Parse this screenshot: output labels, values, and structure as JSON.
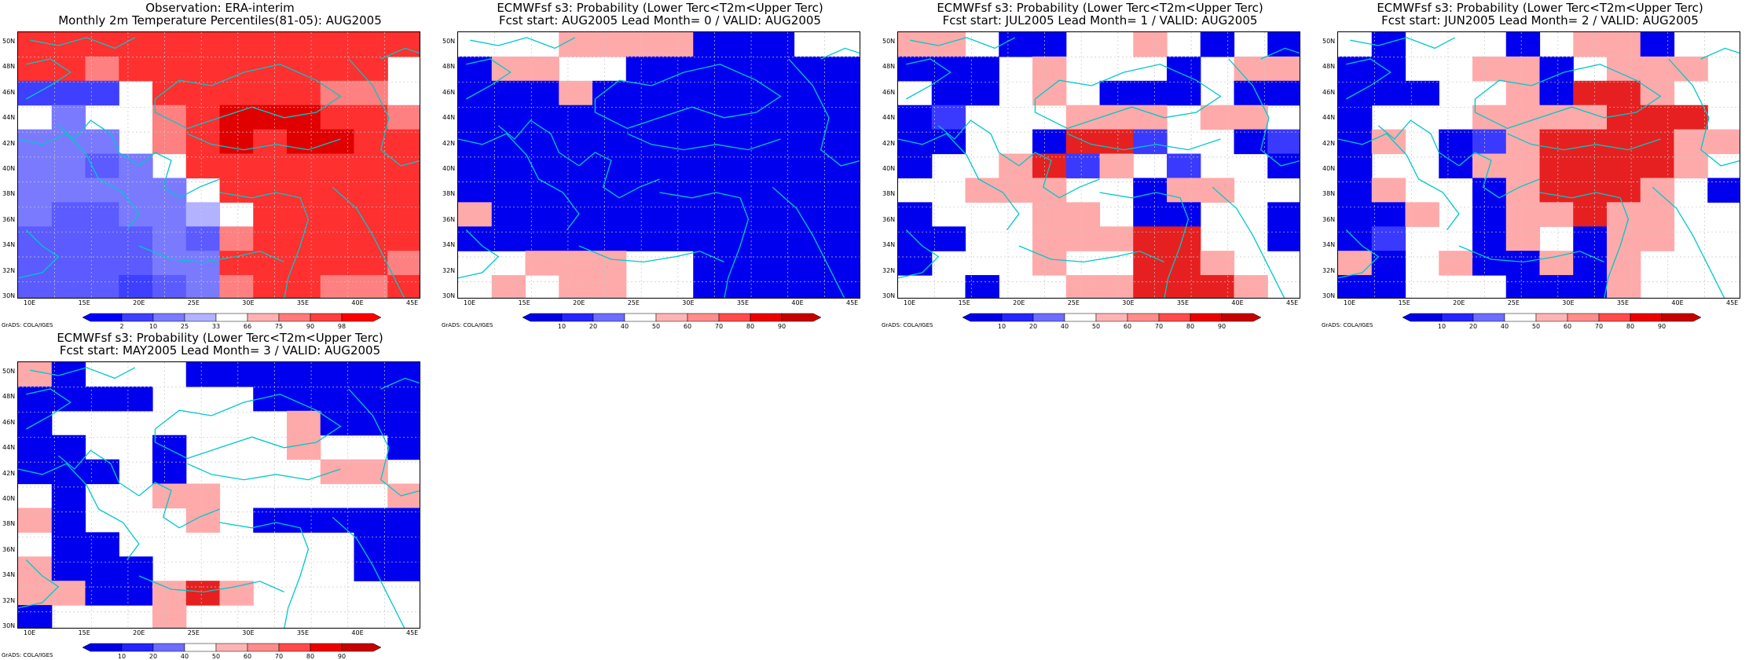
{
  "credit": "GrADS: COLA/IGES",
  "lat_labels": [
    "30N",
    "32N",
    "34N",
    "36N",
    "38N",
    "40N",
    "42N",
    "44N",
    "46N",
    "48N",
    "50N"
  ],
  "lon_labels": [
    "10E",
    "15E",
    "20E",
    "25E",
    "30E",
    "35E",
    "40E",
    "45E"
  ],
  "obs_colorbar": {
    "labels": [
      "2",
      "10",
      "25",
      "33",
      "66",
      "75",
      "90",
      "98"
    ],
    "colors": [
      "#0000ff",
      "#3f3fff",
      "#7a7aff",
      "#b2b2ff",
      "#ffffff",
      "#ffb2b2",
      "#ff7a7a",
      "#ff3f3f",
      "#ff0000"
    ]
  },
  "prob_colorbar": {
    "labels": [
      "10",
      "20",
      "40",
      "50",
      "60",
      "70",
      "80",
      "90"
    ],
    "colors": [
      "#0000e6",
      "#2525ff",
      "#6d6dff",
      "#ffffff",
      "#ffb4b4",
      "#ff8c8c",
      "#ff4b4b",
      "#ee0000",
      "#c80000"
    ]
  },
  "panels": [
    {
      "title1": "Observation: ERA-interim",
      "title2": "Monthly 2m Temperature Percentiles(81-05): AUG2005",
      "colorbar": "obs",
      "grid": [
        "RRRRRRRRRRRR",
        "RRrRRRRRRRR.",
        "LLL.RRRRRrr.",
        ".l..rRSSSRRr",
        "lll.rRSRSSRR",
        "llkl.RRRRRRR",
        "lllll.RRRRRR",
        "lkkllu.RRRRR",
        "kkkklkrRRRRR",
        "kkkkllRRRRRr",
        "kkkmklrRRrrR"
      ]
    },
    {
      "title1": "ECMWFsf s3: Probability (Lower Terc<T2m<Upper Terc)",
      "title2": "Fcst start: AUG2005  Lead Month= 0 / VALID: AUG2005",
      "colorbar": "prob",
      "grid": [
        "...rrrrBBB..",
        "Brr..BBBBBBB",
        "BBBrBBBBBBBB",
        "BBBBBBBBBBBB",
        "BBBBBBBBBBBB",
        "BBBBBBBBBBBB",
        "BBBBBBBBBBBB",
        "rBBBBBBBBBBB",
        "BBBBBBBBBBBB",
        "..rrr..BBBBB",
        ".r.rr..BBBBB"
      ]
    },
    {
      "title1": "ECMWFsf s3: Probability (Lower Terc<T2m<Upper Terc)",
      "title2": "Fcst start: JUL2005  Lead Month= 1 / VALID: AUG2005",
      "colorbar": "prob",
      "grid": [
        "rr.BB..r.B.B",
        "BBB.r...B.rr",
        ".BB.r.BBB.BB",
        "Bb...rrr.rr.",
        "BB..BRRb..Bb",
        "B..rRbr.b..B",
        "..rrr..Brr..",
        "B...rr.BB..B",
        "BB..rrrRR..B",
        "B...r..RRr..",
        "..B..rrRRRr."
      ]
    },
    {
      "title1": "ECMWFsf s3: Probability (Lower Terc<T2m<Upper Terc)",
      "title2": "Fcst start: JUN2005  Lead Month= 2 / VALID: AUG2005",
      "colorbar": "prob",
      "grid": [
        ".B...B.rrB..",
        "BB..rrB.rrr.",
        "BBB..rBRRr..",
        "B...rrrrRRR.",
        "Br.BbrRRRRrr",
        "B..BrrRRRRr.",
        "Br..BrRRRr.B",
        "BBr.BrrRrr..",
        "Bb..Br.Brr..",
        "rB.rBBrBr...",
        "BB...BBBr..."
      ]
    },
    {
      "title1": "ECMWFsf s3: Probability (Lower Terc<T2m<Upper Terc)",
      "title2": "Fcst start: MAY2005  Lead Month= 3 / VALID: AUG2005",
      "colorbar": "prob",
      "grid": [
        "rB...BBBBBBB",
        "BBBB...BBBBB",
        "B.......rBBB",
        "BB..B...r..B",
        "BBB.B....rr.",
        ".B..rr.....r",
        "rB...r.BBBBB",
        ".BB.......BB",
        "rBBB......BB",
        "rrBBrRr.....",
        "B...r......."
      ]
    }
  ]
}
